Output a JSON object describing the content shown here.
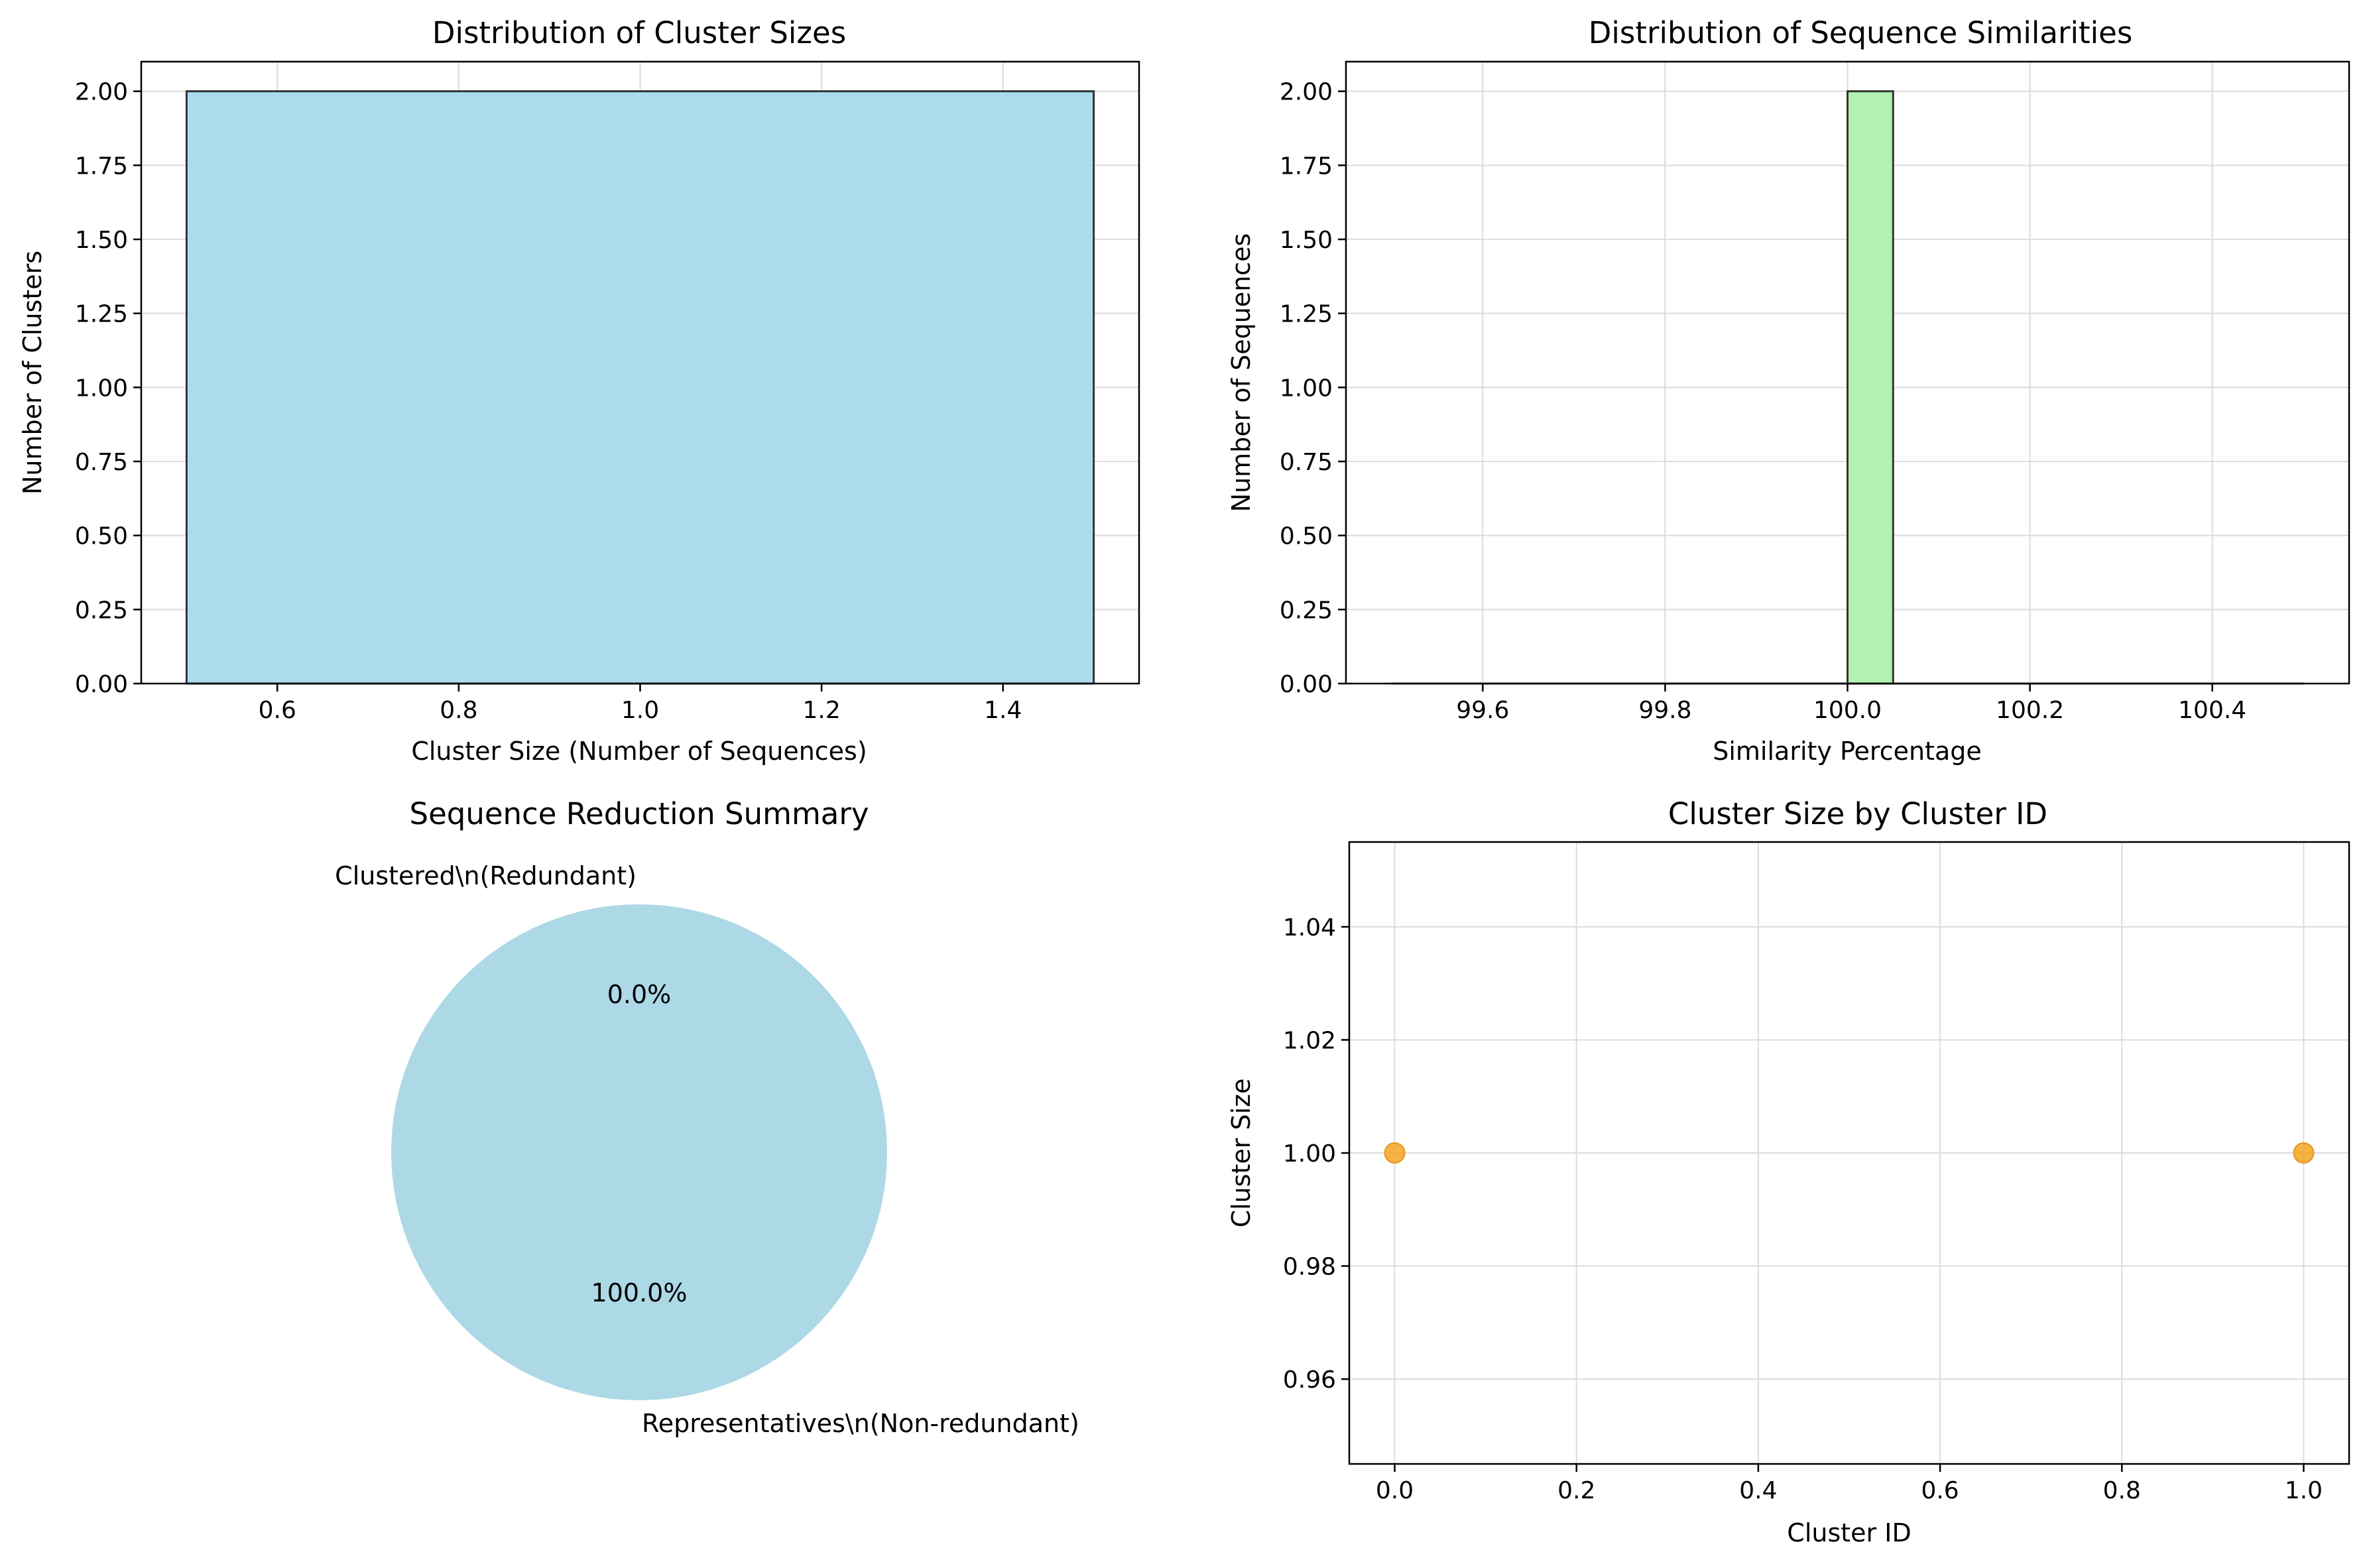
{
  "chart_data": [
    {
      "id": "p1",
      "type": "bar",
      "title": "Distribution of Cluster Sizes",
      "xlabel": "Cluster Size (Number of Sequences)",
      "ylabel": "Number of Clusters",
      "xlim": [
        0.45,
        1.55
      ],
      "ylim": [
        0,
        2.1
      ],
      "xticks": [
        0.6,
        0.8,
        1.0,
        1.2,
        1.4
      ],
      "xtick_labels": [
        "0.6",
        "0.8",
        "1.0",
        "1.2",
        "1.4"
      ],
      "yticks": [
        0,
        0.25,
        0.5,
        0.75,
        1.0,
        1.25,
        1.5,
        1.75,
        2.0
      ],
      "ytick_labels": [
        "0.00",
        "0.25",
        "0.50",
        "0.75",
        "1.00",
        "1.25",
        "1.50",
        "1.75",
        "2.00"
      ],
      "grid": true,
      "bars": [
        {
          "x0": 0.5,
          "x1": 1.5,
          "value": 2
        }
      ],
      "color": "#a8dbed",
      "edge_color": "#333333"
    },
    {
      "id": "p2",
      "type": "bar",
      "title": "Distribution of Sequence Similarities",
      "xlabel": "Similarity Percentage",
      "ylabel": "Number of Sequences",
      "xlim": [
        99.45,
        100.55
      ],
      "ylim": [
        0,
        2.1
      ],
      "xticks": [
        99.6,
        99.8,
        100.0,
        100.2,
        100.4
      ],
      "xtick_labels": [
        "99.6",
        "99.8",
        "100.0",
        "100.2",
        "100.4"
      ],
      "yticks": [
        0,
        0.25,
        0.5,
        0.75,
        1.0,
        1.25,
        1.5,
        1.75,
        2.0
      ],
      "ytick_labels": [
        "0.00",
        "0.25",
        "0.50",
        "0.75",
        "1.00",
        "1.25",
        "1.50",
        "1.75",
        "2.00"
      ],
      "grid": true,
      "bin_edges": [
        99.5,
        99.55,
        99.6,
        99.65,
        99.7,
        99.75,
        99.8,
        99.85,
        99.9,
        99.95,
        100.0,
        100.05,
        100.1,
        100.15,
        100.2,
        100.25,
        100.3,
        100.35,
        100.4,
        100.45,
        100.5
      ],
      "counts": [
        0,
        0,
        0,
        0,
        0,
        0,
        0,
        0,
        0,
        0,
        2,
        0,
        0,
        0,
        0,
        0,
        0,
        0,
        0,
        0
      ],
      "color": "#b1f2b1",
      "edge_color": "#333333"
    },
    {
      "id": "p3",
      "type": "pie",
      "title": "Sequence Reduction Summary",
      "slices": [
        {
          "label": "Representatives\\n(Non-redundant)",
          "value": 100.0,
          "pct_label": "100.0%",
          "color": "#add8e6"
        },
        {
          "label": "Clustered\\n(Redundant)",
          "value": 0.0,
          "pct_label": "0.0%",
          "color": "#f08080"
        }
      ]
    },
    {
      "id": "p4",
      "type": "scatter",
      "title": "Cluster Size by Cluster ID",
      "xlabel": "Cluster ID",
      "ylabel": "Cluster Size",
      "xlim": [
        -0.05,
        1.05
      ],
      "ylim": [
        0.945,
        1.055
      ],
      "xticks": [
        0,
        0.2,
        0.4,
        0.6,
        0.8,
        1.0
      ],
      "xtick_labels": [
        "0.0",
        "0.2",
        "0.4",
        "0.6",
        "0.8",
        "1.0"
      ],
      "yticks": [
        0.96,
        0.98,
        1.0,
        1.02,
        1.04
      ],
      "ytick_labels": [
        "0.96",
        "0.98",
        "1.00",
        "1.02",
        "1.04"
      ],
      "grid": true,
      "points": [
        {
          "x": 0,
          "y": 1.0
        },
        {
          "x": 1,
          "y": 1.0
        }
      ],
      "color": "#f5a623"
    }
  ]
}
